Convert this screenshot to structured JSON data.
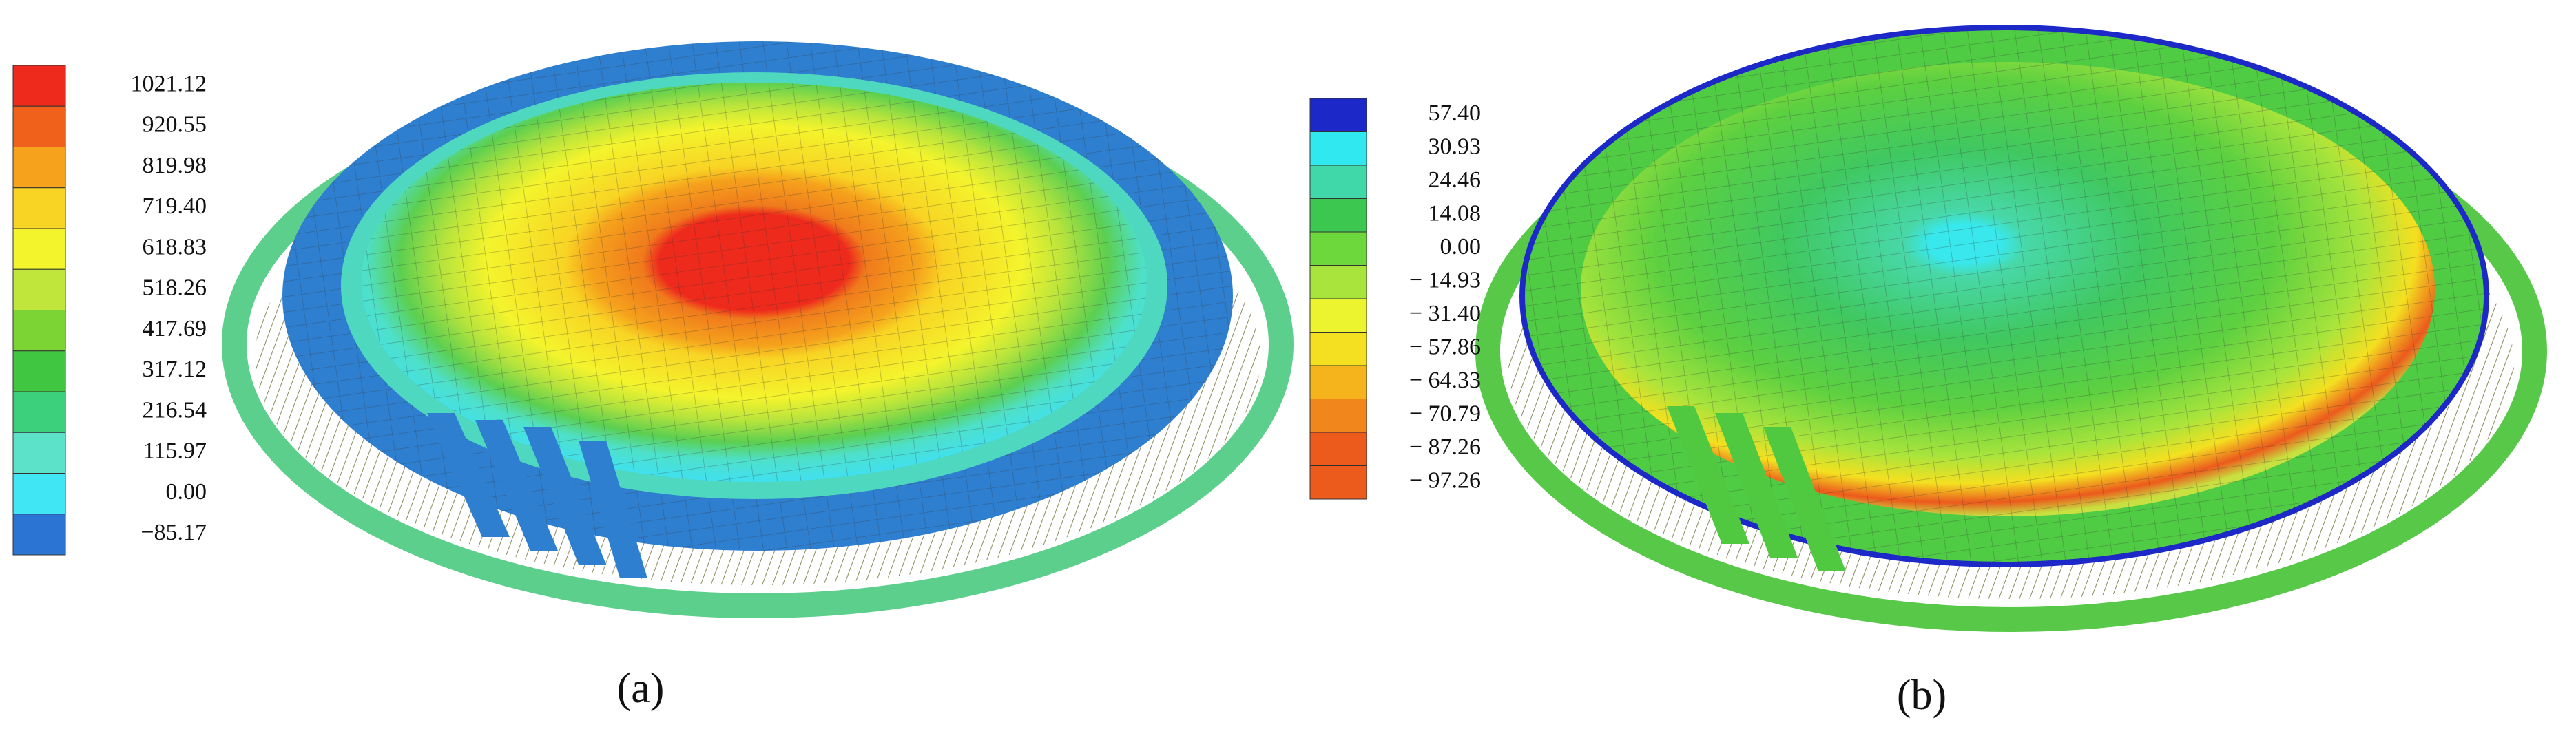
{
  "panels": [
    {
      "label": "(a)",
      "legend": {
        "labels": [
          "1021.12",
          "920.55",
          "819.98",
          "719.40",
          "618.83",
          "518.26",
          "417.69",
          "317.12",
          "216.54",
          "115.97",
          "0.00",
          "−85.17"
        ],
        "colors": [
          "#ee2a1c",
          "#f0621c",
          "#f7a21c",
          "#f8d424",
          "#f4f42c",
          "#c0e63c",
          "#7cd434",
          "#40c640",
          "#3ccf7c",
          "#5ce2c8",
          "#40e6f4",
          "#2c74d4"
        ]
      }
    },
    {
      "label": "(b)",
      "legend": {
        "labels": [
          "57.40",
          "30.93",
          "24.46",
          "14.08",
          "0.00",
          "− 14.93",
          "− 31.40",
          "− 57.86",
          "− 64.33",
          "− 70.79",
          "− 87.26",
          "− 97.26"
        ],
        "colors": [
          "#1c28c8",
          "#30e8f0",
          "#40d8a8",
          "#3cc850",
          "#6cd83c",
          "#a8e43c",
          "#ecf430",
          "#f4e020",
          "#f6b41c",
          "#f0861c",
          "#ec5a1c",
          "#ec5a1c"
        ]
      }
    }
  ]
}
